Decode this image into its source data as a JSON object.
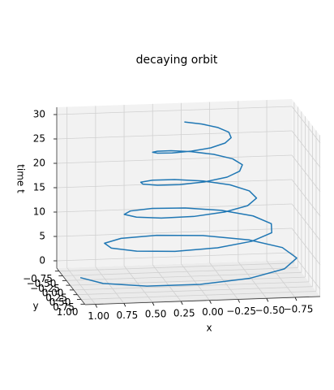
{
  "chart_data": {
    "type": "line3d",
    "title": "decaying orbit",
    "xlabel": "x",
    "ylabel": "y",
    "zlabel": "time t",
    "grid": true,
    "series": [
      {
        "color": "#1f77b4",
        "x": [
          1.0,
          0.86,
          0.52,
          0.07,
          -0.38,
          -0.72,
          -0.88,
          -0.81,
          -0.56,
          -0.18,
          0.23,
          0.57,
          0.76,
          0.75,
          0.57,
          0.26,
          -0.11,
          -0.43,
          -0.64,
          -0.68,
          -0.56,
          -0.31,
          0.0,
          0.3,
          0.52,
          0.61,
          0.54,
          0.35,
          0.08,
          -0.2,
          -0.42,
          -0.53,
          -0.5,
          -0.36,
          -0.14,
          0.11,
          0.32,
          0.45,
          0.46,
          0.36,
          0.18,
          -0.03,
          -0.24,
          -0.37,
          -0.42,
          -0.36,
          -0.21,
          -0.02,
          0.16,
          0.3,
          0.36,
          0.34,
          0.23,
          0.07,
          -0.1,
          -0.24,
          -0.31,
          -0.31,
          -0.23,
          -0.1,
          0.05
        ],
        "y": [
          0.0,
          0.47,
          0.81,
          0.94,
          0.84,
          0.54,
          0.13,
          -0.31,
          -0.64,
          -0.82,
          -0.79,
          -0.57,
          -0.22,
          0.17,
          0.5,
          0.7,
          0.72,
          0.57,
          0.29,
          -0.05,
          -0.36,
          -0.58,
          -0.64,
          -0.55,
          -0.33,
          -0.04,
          0.25,
          0.47,
          0.57,
          0.52,
          0.36,
          0.11,
          -0.15,
          -0.37,
          -0.49,
          -0.49,
          -0.37,
          -0.16,
          0.07,
          0.28,
          0.41,
          0.44,
          0.36,
          0.2,
          0.0,
          -0.2,
          -0.34,
          -0.39,
          -0.35,
          -0.22,
          -0.05,
          0.13,
          0.27,
          0.34,
          0.33,
          0.23,
          0.09,
          -0.07,
          -0.21,
          -0.29,
          -0.3
        ],
        "z": [
          0,
          0.5,
          1,
          1.5,
          2,
          2.5,
          3,
          3.5,
          4,
          4.5,
          5,
          5.5,
          6,
          6.5,
          7,
          7.5,
          8,
          8.5,
          9,
          9.5,
          10,
          10.5,
          11,
          11.5,
          12,
          12.5,
          13,
          13.5,
          14,
          14.5,
          15,
          15.5,
          16,
          16.5,
          17,
          17.5,
          18,
          18.5,
          19,
          19.5,
          20,
          20.5,
          21,
          21.5,
          22,
          22.5,
          23,
          23.5,
          24,
          24.5,
          25,
          25.5,
          26,
          26.5,
          27,
          27.5,
          28,
          28.5,
          29,
          29.5,
          30
        ]
      }
    ],
    "xlim": [
      -0.97,
      1.09
    ],
    "ylim": [
      -0.91,
      1.03
    ],
    "zlim": [
      -1.5,
      31.5
    ],
    "xticks": [
      {
        "value": 1,
        "label": "1.00"
      },
      {
        "value": 0.75,
        "label": "0.75"
      },
      {
        "value": 0.5,
        "label": "0.50"
      },
      {
        "value": 0.25,
        "label": "0.25"
      },
      {
        "value": 0,
        "label": "0.00"
      },
      {
        "value": -0.25,
        "label": "−0.25"
      },
      {
        "value": -0.5,
        "label": "−0.50"
      },
      {
        "value": -0.75,
        "label": "−0.75"
      }
    ],
    "yticks": [
      {
        "value": -0.75,
        "label": "−0.75"
      },
      {
        "value": -0.5,
        "label": "−0.50"
      },
      {
        "value": -0.25,
        "label": "−0.25"
      },
      {
        "value": 0,
        "label": "0.00"
      },
      {
        "value": 0.25,
        "label": "0.25"
      },
      {
        "value": 0.5,
        "label": "0.50"
      },
      {
        "value": 0.75,
        "label": "0.75"
      },
      {
        "value": 1,
        "label": "1.00"
      }
    ],
    "zticks": [
      0,
      5,
      10,
      15,
      20,
      25,
      30
    ]
  }
}
